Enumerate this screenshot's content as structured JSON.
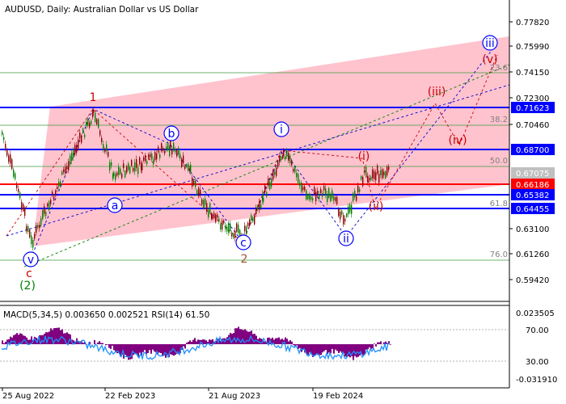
{
  "header": {
    "title": "AUDUSD, Daily:  Australian Dollar vs US Dollar"
  },
  "price_axis": {
    "ticks": [
      "0.77820",
      "0.75990",
      "0.74150",
      "0.72300",
      "0.70460",
      "0.68700",
      "0.66186",
      "0.65382",
      "0.63100",
      "0.61260",
      "0.59420"
    ],
    "labels": [
      {
        "value": "0.71623",
        "bg": "#0000ff"
      },
      {
        "value": "0.68700",
        "bg": "#0000ff"
      },
      {
        "value": "0.67075",
        "bg": "#c0c0c0"
      },
      {
        "value": "0.66186",
        "bg": "#ff0000"
      },
      {
        "value": "0.65382",
        "bg": "#0000ff"
      },
      {
        "value": "0.64455",
        "bg": "#0000ff"
      }
    ]
  },
  "fib_levels": [
    "23.6",
    "38.2",
    "50.0",
    "61.8",
    "76.0"
  ],
  "wave_labels": {
    "blue": [
      "v",
      "a",
      "b",
      "c",
      "i",
      "ii",
      "iii"
    ],
    "red": [
      "c",
      "1",
      "2",
      "(i)",
      "(ii)",
      "(iii)",
      "(iv)",
      "(v)"
    ],
    "green": [
      "(2)"
    ]
  },
  "indicator": {
    "label": "MACD(5,34,5) 0.003650 0.002521 RSI(14) 61.50",
    "ticks": [
      "0.023505",
      "70.00",
      "30.00",
      "-0.031910"
    ]
  },
  "time_axis": {
    "ticks": [
      "25 Aug 2022",
      "22 Feb 2023",
      "21 Aug 2023",
      "19 Feb 2024"
    ]
  },
  "colors": {
    "channel": "#ffc0cb",
    "support_resistance": "#0000ff",
    "current_level": "#ff0000",
    "fib": "#008000",
    "candle_up": "#008000",
    "candle_down": "#8b0000",
    "macd_hist": "#800080",
    "rsi": "#1e90ff"
  }
}
